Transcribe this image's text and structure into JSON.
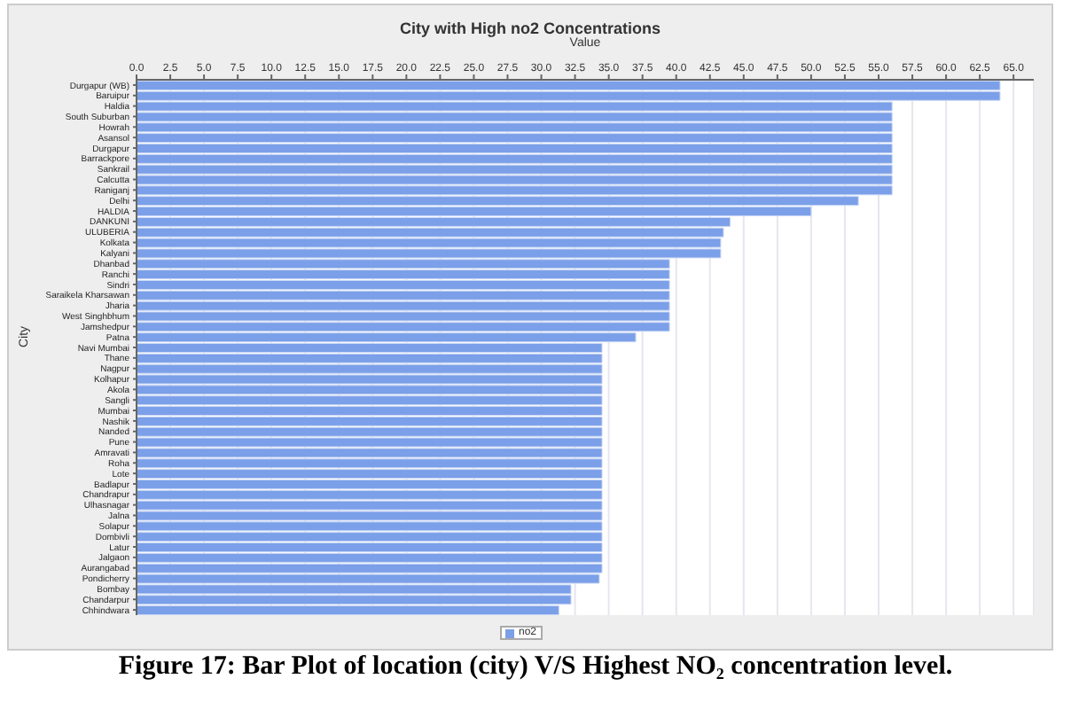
{
  "chart_data": {
    "type": "bar",
    "orientation": "horizontal",
    "title": "City with High no2 Concentrations",
    "xlabel": "Value",
    "ylabel": "City",
    "annotations": [
      "Figure 17: Bar Plot of location (city) V/S Highest NO₂ concentration level."
    ],
    "categories": [
      "Durgapur (WB)",
      "Baruipur",
      "Haldia",
      "South Suburban",
      "Howrah",
      "Asansol",
      "Durgapur",
      "Barrackpore",
      "Sankrail",
      "Calcutta",
      "Raniganj",
      "Delhi",
      "HALDIA",
      "DANKUNI",
      "ULUBERIA",
      "Kolkata",
      "Kalyani",
      "Dhanbad",
      "Ranchi",
      "Sindri",
      "Saraikela Kharsawan",
      "Jharia",
      "West Singhbhum",
      "Jamshedpur",
      "Patna",
      "Navi Mumbai",
      "Thane",
      "Nagpur",
      "Kolhapur",
      "Akola",
      "Sangli",
      "Mumbai",
      "Nashik",
      "Nanded",
      "Pune",
      "Amravati",
      "Roha",
      "Lote",
      "Badlapur",
      "Chandrapur",
      "Ulhasnagar",
      "Jalna",
      "Solapur",
      "Dombivli",
      "Latur",
      "Jalgaon",
      "Aurangabad",
      "Pondicherry",
      "Bombay",
      "Chandarpur",
      "Chhindwara"
    ],
    "series": [
      {
        "name": "no2",
        "color": "#7b9fe8",
        "values": [
          64,
          64,
          56,
          56,
          56,
          56,
          56,
          56,
          56,
          56,
          56,
          53.5,
          50,
          44,
          43.5,
          43.3,
          43.3,
          39.5,
          39.5,
          39.5,
          39.5,
          39.5,
          39.5,
          39.5,
          37,
          34.5,
          34.5,
          34.5,
          34.5,
          34.5,
          34.5,
          34.5,
          34.5,
          34.5,
          34.5,
          34.5,
          34.5,
          34.5,
          34.5,
          34.5,
          34.5,
          34.5,
          34.5,
          34.5,
          34.5,
          34.5,
          34.5,
          34.3,
          32.2,
          32.2,
          31.3
        ]
      }
    ],
    "xlim": [
      0,
      66.5
    ],
    "xticks": [
      {
        "value": 0,
        "label": "0.0"
      },
      {
        "value": 2.5,
        "label": "2.5"
      },
      {
        "value": 5,
        "label": "5.0"
      },
      {
        "value": 7.5,
        "label": "7.5"
      },
      {
        "value": 10,
        "label": "10.0"
      },
      {
        "value": 12.5,
        "label": "12.5"
      },
      {
        "value": 15,
        "label": "15.0"
      },
      {
        "value": 17.5,
        "label": "17.5"
      },
      {
        "value": 20,
        "label": "20.0"
      },
      {
        "value": 22.5,
        "label": "22.5"
      },
      {
        "value": 25,
        "label": "25.0"
      },
      {
        "value": 27.5,
        "label": "27.5"
      },
      {
        "value": 30,
        "label": "30.0"
      },
      {
        "value": 32.5,
        "label": "32.5"
      },
      {
        "value": 35,
        "label": "35.0"
      },
      {
        "value": 37.5,
        "label": "37.5"
      },
      {
        "value": 40,
        "label": "40.0"
      },
      {
        "value": 42.5,
        "label": "42.5"
      },
      {
        "value": 45,
        "label": "45.0"
      },
      {
        "value": 47.5,
        "label": "47.5"
      },
      {
        "value": 50,
        "label": "50.0"
      },
      {
        "value": 52.5,
        "label": "52.5"
      },
      {
        "value": 55,
        "label": "55.0"
      },
      {
        "value": 57.5,
        "label": "57.5"
      },
      {
        "value": 60,
        "label": "60.0"
      },
      {
        "value": 62.5,
        "label": "62.5"
      },
      {
        "value": 65,
        "label": "65.0"
      }
    ],
    "grid": "x",
    "legend": "bottom"
  }
}
